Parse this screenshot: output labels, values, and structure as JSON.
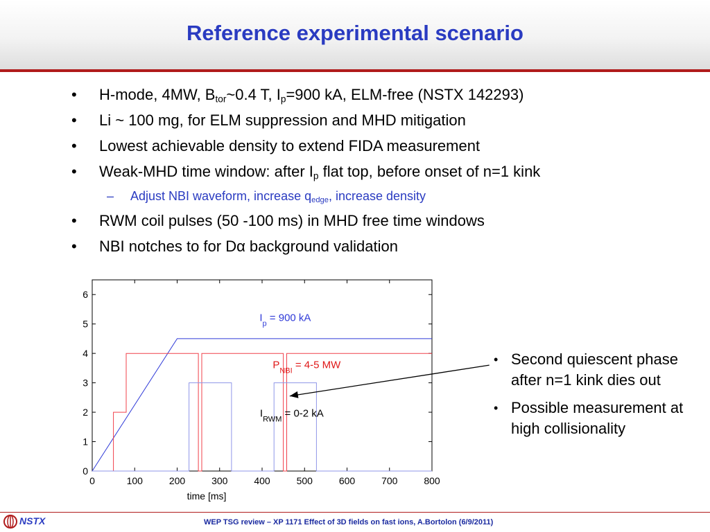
{
  "slide": {
    "title": "Reference experimental scenario",
    "bullets": [
      {
        "text": "H-mode, 4MW, B",
        "sub1": "tor",
        "mid": "~0.4 T, I",
        "sub2": "p",
        "tail": "=900 kA, ELM-free (NSTX 142293)"
      },
      {
        "text": "Li ~ 100 mg, for ELM suppression and MHD mitigation"
      },
      {
        "text": "Lowest achievable density to extend FIDA measurement"
      },
      {
        "text": "Weak-MHD time window: after I",
        "sub": "p",
        "tail": " flat top, before onset of n=1 kink"
      },
      {
        "text": "Adjust NBI waveform, increase q",
        "sub": "edge",
        "tail": ", increase density"
      },
      {
        "text": "RWM coil pulses (50 -100 ms) in MHD free time windows"
      },
      {
        "text": "NBI notches to for Dα background validation"
      }
    ],
    "side_bullets": [
      "Second quiescent phase after n=1 kink dies out",
      "Possible measurement at high collisionality"
    ]
  },
  "footer": {
    "logo_text": "NSTX",
    "text": "WEP TSG review – XP 1171 Effect of 3D fields on fast ions, A.Bortolon (6/9/2011)"
  },
  "chart_data": {
    "type": "line",
    "xlabel": "time [ms]",
    "xlim": [
      0,
      800
    ],
    "ylim": [
      0,
      6.5
    ],
    "x_ticks": [
      "0",
      "100",
      "200",
      "300",
      "400",
      "500",
      "600",
      "700",
      "800"
    ],
    "y_ticks": [
      "0",
      "1",
      "2",
      "3",
      "4",
      "5",
      "6"
    ],
    "series": [
      {
        "name": "Ip = 900 kA",
        "color": "#2f3ad8",
        "x": [
          0,
          200,
          800
        ],
        "y": [
          0,
          4.5,
          4.5
        ]
      },
      {
        "name": "PNBI = 4-5 MW",
        "color": "#f0404a",
        "x": [
          0,
          50,
          50,
          80,
          80,
          250,
          250,
          258,
          258,
          450,
          450,
          458,
          458,
          800
        ],
        "y": [
          0,
          0,
          2,
          2,
          4,
          4,
          0,
          0,
          4,
          4,
          0,
          0,
          4,
          4
        ]
      },
      {
        "name": "IRWM = 0-2 kA",
        "color": "#8f96e8",
        "x": [
          0,
          228,
          228,
          328,
          328,
          428,
          428,
          528,
          528,
          800
        ],
        "y": [
          0,
          0,
          3,
          3,
          0,
          0,
          3,
          3,
          0,
          0
        ]
      }
    ],
    "annotations": {
      "ip": {
        "main": "I",
        "sub": "p",
        "tail": " = 900 kA",
        "x": 515,
        "y": 5.1
      },
      "nbi": {
        "main": "P",
        "sub": "NBI",
        "tail": " = 4-5 MW",
        "x": 585,
        "y": 3.5
      },
      "rwm": {
        "main": "I",
        "sub": "RWM",
        "tail": " = 0-2 kA",
        "x": 545,
        "y": 1.85
      }
    },
    "arrow": {
      "from": [
        935,
        3.6
      ],
      "to": [
        465,
        2.55
      ]
    }
  }
}
